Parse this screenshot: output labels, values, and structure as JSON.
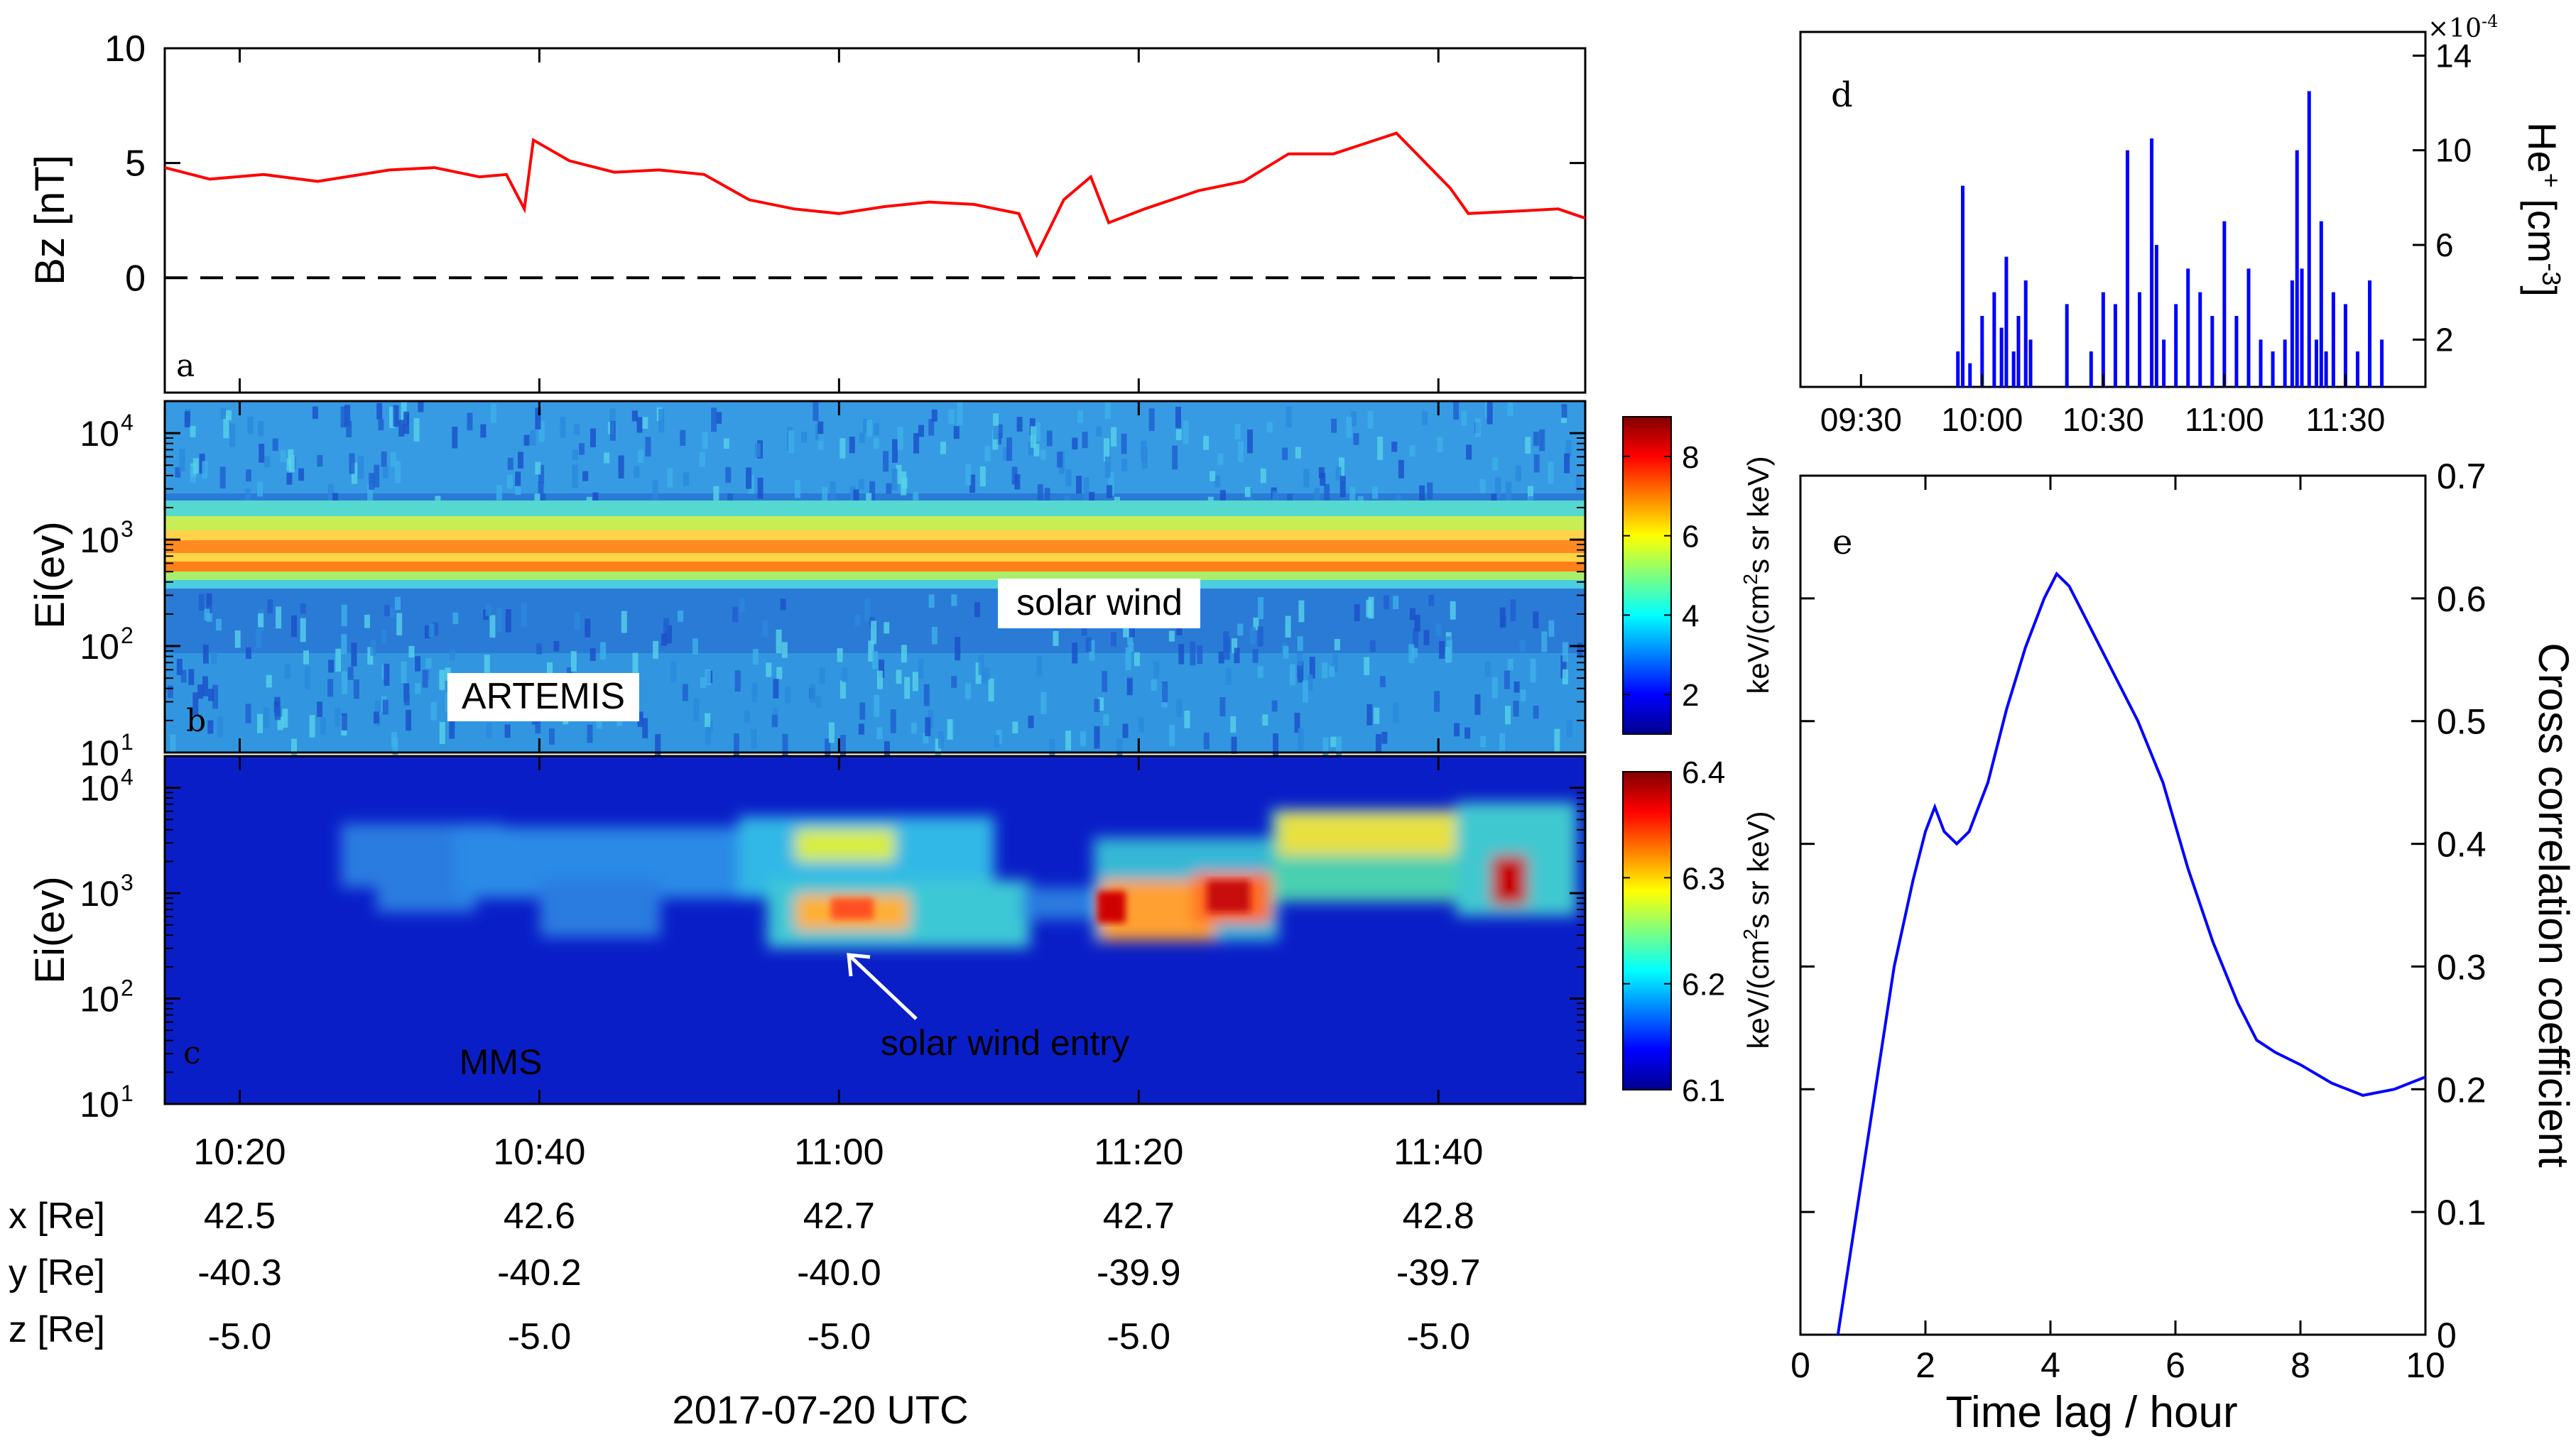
{
  "chart_data": [
    {
      "id": "a",
      "type": "line",
      "panel_label": "a",
      "ylabel": "Bz [nT]",
      "ylim": [
        -5,
        10
      ],
      "yticks": [
        "10",
        "5",
        "0"
      ],
      "xlim_minutes": [
        10.25,
        11.83
      ],
      "series": [
        {
          "name": "Bz",
          "color": "#ff0000",
          "x": [
            10.25,
            10.3,
            10.36,
            10.42,
            10.5,
            10.55,
            10.6,
            10.63,
            10.65,
            10.66,
            10.7,
            10.75,
            10.8,
            10.85,
            10.9,
            10.95,
            11.0,
            11.05,
            11.1,
            11.15,
            11.2,
            11.22,
            11.25,
            11.28,
            11.3,
            11.34,
            11.4,
            11.45,
            11.5,
            11.55,
            11.62,
            11.68,
            11.7,
            11.75,
            11.8,
            11.83
          ],
          "values": [
            4.8,
            4.3,
            4.5,
            4.2,
            4.7,
            4.8,
            4.4,
            4.5,
            3.0,
            6.0,
            5.1,
            4.6,
            4.7,
            4.5,
            3.4,
            3.0,
            2.8,
            3.1,
            3.3,
            3.2,
            2.8,
            1.0,
            3.4,
            4.4,
            2.4,
            3.0,
            3.8,
            4.2,
            5.4,
            5.4,
            6.3,
            3.9,
            2.8,
            2.9,
            3.0,
            2.6
          ]
        },
        {
          "name": "zero",
          "color": "#000000",
          "dashed": true,
          "x": [
            10.25,
            11.83
          ],
          "values": [
            0,
            0
          ]
        }
      ]
    },
    {
      "id": "b",
      "type": "heatmap",
      "panel_label": "b",
      "ylabel": "Ei(ev)",
      "yscale": "log",
      "ylim": [
        10,
        20000
      ],
      "yticks": [
        "10",
        "10",
        "10",
        "10"
      ],
      "ytick_exponents": [
        "4",
        "3",
        "2",
        "1"
      ],
      "annotations": [
        "solar wind",
        "ARTEMIS"
      ],
      "colorbar": {
        "label": "keV/(cm",
        "label_sup": "2",
        "label_rest": "s sr keV)",
        "ticks": [
          "8",
          "6",
          "4",
          "2"
        ],
        "range": [
          1,
          9
        ]
      }
    },
    {
      "id": "c",
      "type": "heatmap",
      "panel_label": "c",
      "ylabel": "Ei(ev)",
      "yscale": "log",
      "ylim": [
        10,
        20000
      ],
      "yticks": [
        "10",
        "10",
        "10",
        "10"
      ],
      "ytick_exponents": [
        "4",
        "3",
        "2",
        "1"
      ],
      "annotations": [
        "solar wind entry",
        "MMS"
      ],
      "colorbar": {
        "label": "keV/(cm",
        "label_sup": "2",
        "label_rest": "s sr keV)",
        "ticks": [
          "6.4",
          "6.3",
          "6.2",
          "6.1"
        ],
        "range": [
          6.1,
          6.4
        ]
      }
    },
    {
      "id": "d",
      "type": "line",
      "panel_label": "d",
      "ylabel": "He",
      "ylabel_sup": "+",
      "ylabel_unit": " [cm",
      "ylabel_unit_sup": "-3",
      "ylabel_end": "]",
      "scale_label": "×10",
      "scale_exp": "-4",
      "yticks": [
        "14",
        "10",
        "6",
        "2"
      ],
      "ylim": [
        0,
        15
      ],
      "xticks": [
        "09:30",
        "10:00",
        "10:30",
        "11:00",
        "11:30"
      ],
      "spikes": {
        "x": [
          9.9,
          9.92,
          9.95,
          10.0,
          10.05,
          10.08,
          10.1,
          10.13,
          10.15,
          10.18,
          10.2,
          10.35,
          10.45,
          10.5,
          10.55,
          10.6,
          10.65,
          10.7,
          10.72,
          10.75,
          10.8,
          10.85,
          10.9,
          10.95,
          11.0,
          11.05,
          11.1,
          11.15,
          11.2,
          11.25,
          11.28,
          11.3,
          11.32,
          11.35,
          11.38,
          11.4,
          11.42,
          11.45,
          11.5,
          11.55,
          11.6,
          11.65
        ],
        "values": [
          1.5,
          8.5,
          1.0,
          3.0,
          4.0,
          2.5,
          5.5,
          1.5,
          3.0,
          4.5,
          2.0,
          3.5,
          1.5,
          4.0,
          3.5,
          10.0,
          4.0,
          10.5,
          6.0,
          2.0,
          3.5,
          5.0,
          4.0,
          3.0,
          7.0,
          3.0,
          5.0,
          2.0,
          1.5,
          2.0,
          4.5,
          10.0,
          5.0,
          12.5,
          2.0,
          7.0,
          1.5,
          4.0,
          3.5,
          1.5,
          4.5,
          2.0
        ]
      }
    },
    {
      "id": "e",
      "type": "line",
      "panel_label": "e",
      "xlabel": "Time lag / hour",
      "ylabel": "Cross correlation coefficient",
      "xlim": [
        0,
        10
      ],
      "ylim": [
        0,
        0.7
      ],
      "xticks": [
        "0",
        "2",
        "4",
        "6",
        "8",
        "10"
      ],
      "yticks": [
        "0.7",
        "0.6",
        "0.5",
        "0.4",
        "0.3",
        "0.2",
        "0.1",
        "0"
      ],
      "series": [
        {
          "name": "cc",
          "color": "#0000ff",
          "x": [
            0.6,
            0.9,
            1.2,
            1.5,
            1.8,
            2.0,
            2.15,
            2.3,
            2.5,
            2.7,
            3.0,
            3.3,
            3.6,
            3.9,
            4.1,
            4.3,
            4.6,
            5.0,
            5.4,
            5.8,
            6.2,
            6.6,
            7.0,
            7.3,
            7.6,
            8.0,
            8.5,
            9.0,
            9.5,
            10.0
          ],
          "values": [
            0.0,
            0.1,
            0.2,
            0.3,
            0.37,
            0.41,
            0.43,
            0.41,
            0.4,
            0.41,
            0.45,
            0.51,
            0.56,
            0.6,
            0.62,
            0.61,
            0.58,
            0.54,
            0.5,
            0.45,
            0.38,
            0.32,
            0.27,
            0.24,
            0.23,
            0.22,
            0.205,
            0.195,
            0.2,
            0.21
          ]
        }
      ]
    }
  ],
  "time_axis": {
    "ticks": [
      "10:20",
      "10:40",
      "11:00",
      "11:20",
      "11:40"
    ],
    "date_label": "2017-07-20 UTC"
  },
  "orbit_table": {
    "rows": [
      {
        "label": "x [Re]",
        "values": [
          "42.5",
          "42.6",
          "42.7",
          "42.7",
          "42.8"
        ]
      },
      {
        "label": "y [Re]",
        "values": [
          "-40.3",
          "-40.2",
          "-40.0",
          "-39.9",
          "-39.7"
        ]
      },
      {
        "label": "z [Re]",
        "values": [
          "-5.0",
          "-5.0",
          "-5.0",
          "-5.0",
          "-5.0"
        ]
      }
    ]
  }
}
